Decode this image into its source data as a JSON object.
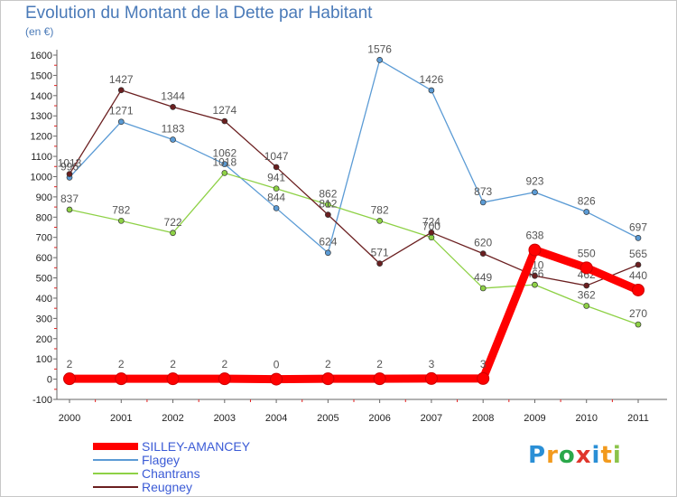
{
  "title": "Evolution du Montant de la Dette par Habitant",
  "subtitle": "(en €)",
  "logo": "Proxiti",
  "chart_data": {
    "type": "line",
    "x": [
      "2000",
      "2001",
      "2002",
      "2003",
      "2004",
      "2005",
      "2006",
      "2007",
      "2008",
      "2009",
      "2010",
      "2011"
    ],
    "ylim": [
      -100,
      1600
    ],
    "yticks": [
      -100,
      0,
      100,
      200,
      300,
      400,
      500,
      600,
      700,
      800,
      900,
      1000,
      1100,
      1200,
      1300,
      1400,
      1500,
      1600
    ],
    "grid": false,
    "legend_position": "bottom-left",
    "series": [
      {
        "name": "Flagey",
        "color": "#5b9bd5",
        "values": [
          996,
          1271,
          1183,
          1062,
          844,
          624,
          1576,
          1426,
          873,
          923,
          826,
          697
        ]
      },
      {
        "name": "Chantrans",
        "color": "#8ed146",
        "values": [
          837,
          782,
          722,
          1018,
          941,
          862,
          782,
          700,
          449,
          466,
          362,
          270
        ]
      },
      {
        "name": "Reugney",
        "color": "#6b1f20",
        "values": [
          1013,
          1427,
          1344,
          1274,
          1047,
          812,
          571,
          724,
          620,
          510,
          462,
          565
        ]
      },
      {
        "name": "SILLEY-AMANCEY",
        "color": "#ff0000",
        "values": [
          2,
          2,
          2,
          2,
          0,
          2,
          2,
          3,
          3,
          638,
          550,
          440
        ]
      }
    ],
    "legend": [
      {
        "name": "SILLEY-AMANCEY",
        "color": "#ff0000",
        "thick": true
      },
      {
        "name": "Flagey",
        "color": "#5b9bd5",
        "thick": false
      },
      {
        "name": "Chantrans",
        "color": "#8ed146",
        "thick": false
      },
      {
        "name": "Reugney",
        "color": "#6b1f20",
        "thick": false
      }
    ]
  }
}
